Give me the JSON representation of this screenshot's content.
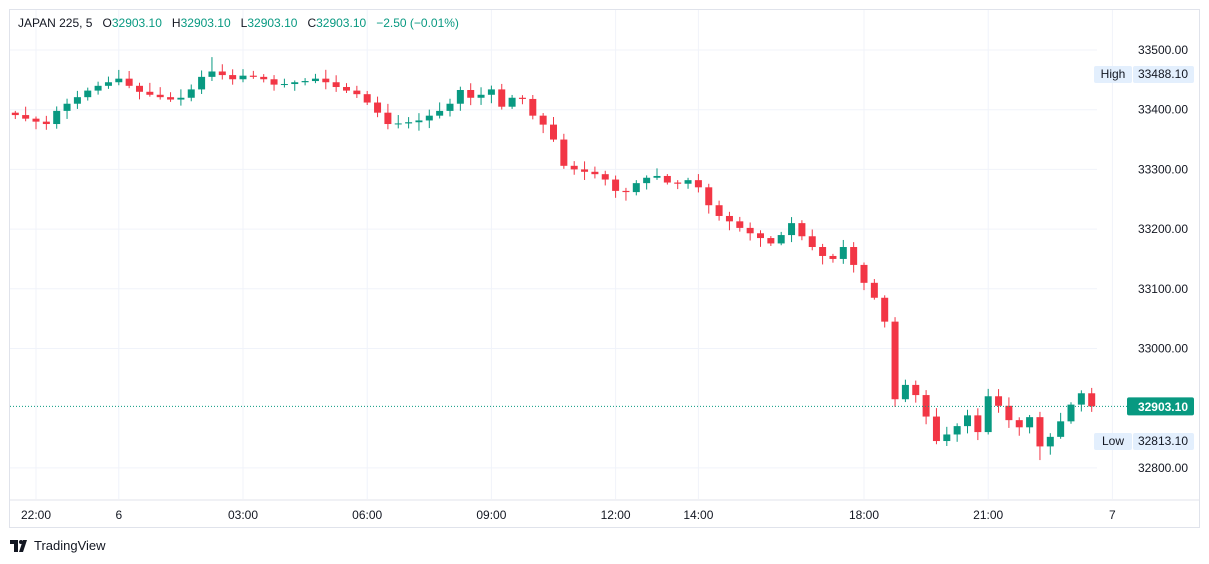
{
  "legend": {
    "symbol": "JAPAN 225, 5",
    "open_label": "O",
    "open": "32903.10",
    "high_label": "H",
    "high": "32903.10",
    "low_label": "L",
    "low": "32903.10",
    "close_label": "C",
    "close": "32903.10",
    "change": "−2.50 (−0.01%)"
  },
  "brand": {
    "name": "TradingView"
  },
  "colors": {
    "up": "#089981",
    "down": "#f23645",
    "grid": "#f0f3fa",
    "label_bg": "#e3effd"
  },
  "chart_data": {
    "type": "candlestick",
    "interval": "15m",
    "start_time": "21:30",
    "close": [
      33391,
      33385,
      33380,
      33376,
      33398,
      33410,
      33421,
      33432,
      33440,
      33446,
      33452,
      33440,
      33430,
      33425,
      33421,
      33417,
      33420,
      33434,
      33455,
      33464,
      33458,
      33451,
      33457,
      33455,
      33451,
      33442,
      33443,
      33446,
      33448,
      33452,
      33446,
      33438,
      33432,
      33426,
      33412,
      33395,
      33376,
      33377,
      33379,
      33382,
      33390,
      33398,
      33410,
      33433,
      33420,
      33425,
      33434,
      33405,
      33420,
      33418,
      33390,
      33375,
      33350,
      33306,
      33300,
      33296,
      33292,
      33283,
      33264,
      33262,
      33277,
      33286,
      33289,
      33278,
      33276,
      33282,
      33270,
      33240,
      33222,
      33213,
      33202,
      33193,
      33185,
      33176,
      33190,
      33210,
      33188,
      33170,
      33155,
      33150,
      33170,
      33140,
      33110,
      33085,
      33045,
      32915,
      32939,
      32922,
      32886,
      32845,
      32856,
      32870,
      32888,
      32860,
      32920,
      32904,
      32880,
      32868,
      32885,
      32836,
      32852,
      32878,
      32906,
      32925,
      32903.1
    ],
    "y_ticks": [
      {
        "value": 33500,
        "label": "33500.00"
      },
      {
        "value": 33400,
        "label": "33400.00"
      },
      {
        "value": 33300,
        "label": "33300.00"
      },
      {
        "value": 33200,
        "label": "33200.00"
      },
      {
        "value": 33100,
        "label": "33100.00"
      },
      {
        "value": 33000,
        "label": "33000.00"
      },
      {
        "value": 32800,
        "label": "32800.00"
      }
    ],
    "x_ticks": [
      {
        "hour": 22,
        "label": "22:00"
      },
      {
        "hour": 24,
        "label": "6"
      },
      {
        "hour": 27,
        "label": "03:00"
      },
      {
        "hour": 30,
        "label": "06:00"
      },
      {
        "hour": 33,
        "label": "09:00"
      },
      {
        "hour": 36,
        "label": "12:00"
      },
      {
        "hour": 38,
        "label": "14:00"
      },
      {
        "hour": 42,
        "label": "18:00"
      },
      {
        "hour": 45,
        "label": "21:00"
      },
      {
        "hour": 48,
        "label": "7"
      }
    ],
    "high": {
      "label": "High",
      "value": 33488.1,
      "text": "33488.10"
    },
    "low": {
      "label": "Low",
      "value": 32813.1,
      "text": "32813.10"
    },
    "last": {
      "value": 32903.1,
      "text": "32903.10"
    }
  }
}
